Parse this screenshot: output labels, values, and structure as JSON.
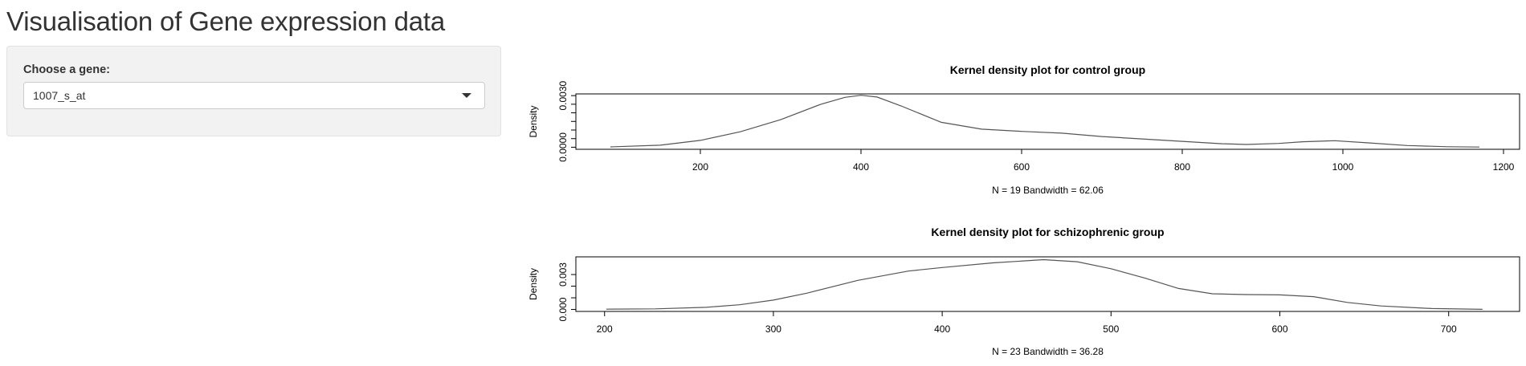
{
  "page": {
    "title": "Visualisation of Gene expression data"
  },
  "sidebar": {
    "gene_label": "Choose a gene:",
    "gene_selected": "1007_s_at"
  },
  "chart_data": [
    {
      "type": "line",
      "title": "Kernel density plot for control group",
      "ylabel": "Density",
      "subtitle": "N = 19   Bandwidth = 62.06",
      "xlim": [
        45,
        1220
      ],
      "ylim": [
        -0.00012,
        0.0031
      ],
      "x_ticks": [
        200,
        400,
        600,
        800,
        1000,
        1200
      ],
      "y_ticks": [
        0.0,
        0.0005,
        0.001,
        0.0015,
        0.002,
        0.0025,
        0.003
      ],
      "y_tick_labels": [
        {
          "value": 0.0,
          "label": "0.0000"
        },
        {
          "value": 0.003,
          "label": "0.0030"
        }
      ],
      "series": [
        {
          "x": [
            88,
            150,
            200,
            250,
            300,
            350,
            380,
            400,
            420,
            450,
            500,
            550,
            600,
            650,
            700,
            750,
            800,
            850,
            880,
            920,
            950,
            990,
            1030,
            1080,
            1130,
            1170
          ],
          "y": [
            2e-05,
            0.00012,
            0.0004,
            0.0009,
            0.0016,
            0.0025,
            0.0029,
            0.00302,
            0.00292,
            0.0024,
            0.00145,
            0.00105,
            0.00092,
            0.00082,
            0.00062,
            0.00048,
            0.00034,
            0.0002,
            0.00016,
            0.00022,
            0.00032,
            0.00038,
            0.00026,
            0.0001,
            3e-05,
            1e-05
          ]
        }
      ]
    },
    {
      "type": "line",
      "title": "Kernel density plot for schizophrenic group",
      "ylabel": "Density",
      "subtitle": "N = 23   Bandwidth = 36.28",
      "xlim": [
        183,
        742
      ],
      "ylim": [
        -0.00017,
        0.00452
      ],
      "x_ticks": [
        200,
        300,
        400,
        500,
        600,
        700
      ],
      "y_ticks": [
        0.0,
        0.001,
        0.002,
        0.003
      ],
      "y_tick_labels": [
        {
          "value": 0.0,
          "label": "0.000"
        },
        {
          "value": 0.003,
          "label": "0.003"
        }
      ],
      "series": [
        {
          "x": [
            201,
            230,
            260,
            280,
            300,
            320,
            350,
            380,
            400,
            430,
            460,
            480,
            500,
            520,
            540,
            560,
            580,
            600,
            620,
            640,
            660,
            690,
            720
          ],
          "y": [
            2e-05,
            5e-05,
            0.00018,
            0.0004,
            0.0008,
            0.0014,
            0.0025,
            0.0033,
            0.0036,
            0.004,
            0.00428,
            0.0041,
            0.0035,
            0.0027,
            0.0018,
            0.00135,
            0.00128,
            0.00125,
            0.0011,
            0.0006,
            0.0003,
            8e-05,
            1e-05
          ]
        }
      ]
    }
  ]
}
